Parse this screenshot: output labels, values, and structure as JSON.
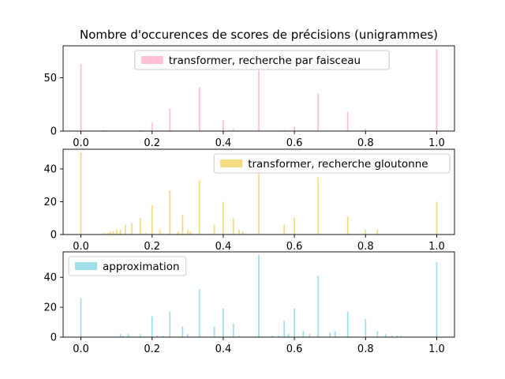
{
  "figure": {
    "title": "Nombre d'occurences de scores de précisions (unigrammes)"
  },
  "chart_data": [
    {
      "type": "bar",
      "series": [
        {
          "name": "transformer, recherche par faisceau",
          "color": "#ffc0d8"
        }
      ],
      "legend_position": "top-center",
      "xlim": [
        -0.05,
        1.05
      ],
      "ylim": [
        0,
        80
      ],
      "xticks": [
        "0.0",
        "0.2",
        "0.4",
        "0.6",
        "0.8",
        "1.0"
      ],
      "yticks": [
        "0",
        "50"
      ],
      "bars": [
        {
          "x": 0.0,
          "y": 63
        },
        {
          "x": 0.0625,
          "y": 1
        },
        {
          "x": 0.1667,
          "y": 1
        },
        {
          "x": 0.2,
          "y": 8
        },
        {
          "x": 0.25,
          "y": 21
        },
        {
          "x": 0.3333,
          "y": 41
        },
        {
          "x": 0.4,
          "y": 10
        },
        {
          "x": 0.4286,
          "y": 2
        },
        {
          "x": 0.5,
          "y": 57
        },
        {
          "x": 0.5714,
          "y": 1
        },
        {
          "x": 0.6,
          "y": 4
        },
        {
          "x": 0.6667,
          "y": 35
        },
        {
          "x": 0.75,
          "y": 18
        },
        {
          "x": 0.8,
          "y": 2
        },
        {
          "x": 1.0,
          "y": 77
        }
      ]
    },
    {
      "type": "bar",
      "series": [
        {
          "name": "transformer, recherche gloutonne",
          "color": "#f5dc82"
        }
      ],
      "legend_position": "top-right",
      "xlim": [
        -0.05,
        1.05
      ],
      "ylim": [
        0,
        52
      ],
      "xticks": [
        "0.0",
        "0.2",
        "0.4",
        "0.6",
        "0.8",
        "1.0"
      ],
      "yticks": [
        "0",
        "20",
        "40"
      ],
      "bars": [
        {
          "x": 0.0,
          "y": 50
        },
        {
          "x": 0.0667,
          "y": 1
        },
        {
          "x": 0.0769,
          "y": 1
        },
        {
          "x": 0.0833,
          "y": 2
        },
        {
          "x": 0.0909,
          "y": 2
        },
        {
          "x": 0.1,
          "y": 3
        },
        {
          "x": 0.1111,
          "y": 3
        },
        {
          "x": 0.125,
          "y": 6
        },
        {
          "x": 0.1429,
          "y": 7
        },
        {
          "x": 0.1667,
          "y": 10
        },
        {
          "x": 0.1818,
          "y": 1
        },
        {
          "x": 0.2,
          "y": 18
        },
        {
          "x": 0.2222,
          "y": 3
        },
        {
          "x": 0.25,
          "y": 27
        },
        {
          "x": 0.2727,
          "y": 2
        },
        {
          "x": 0.2857,
          "y": 12
        },
        {
          "x": 0.3,
          "y": 3
        },
        {
          "x": 0.3077,
          "y": 2
        },
        {
          "x": 0.3333,
          "y": 33
        },
        {
          "x": 0.375,
          "y": 6
        },
        {
          "x": 0.4,
          "y": 20
        },
        {
          "x": 0.4286,
          "y": 10
        },
        {
          "x": 0.4444,
          "y": 3
        },
        {
          "x": 0.4545,
          "y": 2
        },
        {
          "x": 0.5,
          "y": 40
        },
        {
          "x": 0.5714,
          "y": 6
        },
        {
          "x": 0.6,
          "y": 10
        },
        {
          "x": 0.6667,
          "y": 35
        },
        {
          "x": 0.75,
          "y": 11
        },
        {
          "x": 0.8,
          "y": 3
        },
        {
          "x": 0.8333,
          "y": 3
        },
        {
          "x": 1.0,
          "y": 20
        }
      ]
    },
    {
      "type": "bar",
      "series": [
        {
          "name": "approximation",
          "color": "#a0e0ea"
        }
      ],
      "legend_position": "top-left",
      "xlim": [
        -0.05,
        1.05
      ],
      "ylim": [
        0,
        57
      ],
      "xticks": [
        "0.0",
        "0.2",
        "0.4",
        "0.6",
        "0.8",
        "1.0"
      ],
      "yticks": [
        "0",
        "20",
        "40"
      ],
      "bars": [
        {
          "x": 0.0,
          "y": 26
        },
        {
          "x": 0.1111,
          "y": 2
        },
        {
          "x": 0.1176,
          "y": 1
        },
        {
          "x": 0.1333,
          "y": 2
        },
        {
          "x": 0.1667,
          "y": 2
        },
        {
          "x": 0.2,
          "y": 14
        },
        {
          "x": 0.2143,
          "y": 1
        },
        {
          "x": 0.2308,
          "y": 1
        },
        {
          "x": 0.25,
          "y": 17
        },
        {
          "x": 0.2857,
          "y": 7
        },
        {
          "x": 0.3,
          "y": 2
        },
        {
          "x": 0.3333,
          "y": 32
        },
        {
          "x": 0.375,
          "y": 7
        },
        {
          "x": 0.4,
          "y": 19
        },
        {
          "x": 0.4286,
          "y": 9
        },
        {
          "x": 0.4444,
          "y": 1
        },
        {
          "x": 0.5,
          "y": 55
        },
        {
          "x": 0.5385,
          "y": 1
        },
        {
          "x": 0.5556,
          "y": 1
        },
        {
          "x": 0.5714,
          "y": 11
        },
        {
          "x": 0.5833,
          "y": 2
        },
        {
          "x": 0.6,
          "y": 19
        },
        {
          "x": 0.625,
          "y": 4
        },
        {
          "x": 0.6429,
          "y": 2
        },
        {
          "x": 0.6667,
          "y": 41
        },
        {
          "x": 0.7,
          "y": 3
        },
        {
          "x": 0.7143,
          "y": 4
        },
        {
          "x": 0.75,
          "y": 17
        },
        {
          "x": 0.8,
          "y": 12
        },
        {
          "x": 0.8333,
          "y": 4
        },
        {
          "x": 0.8571,
          "y": 2
        },
        {
          "x": 0.875,
          "y": 1
        },
        {
          "x": 0.8889,
          "y": 1
        },
        {
          "x": 0.9,
          "y": 1
        },
        {
          "x": 1.0,
          "y": 50
        }
      ]
    }
  ]
}
